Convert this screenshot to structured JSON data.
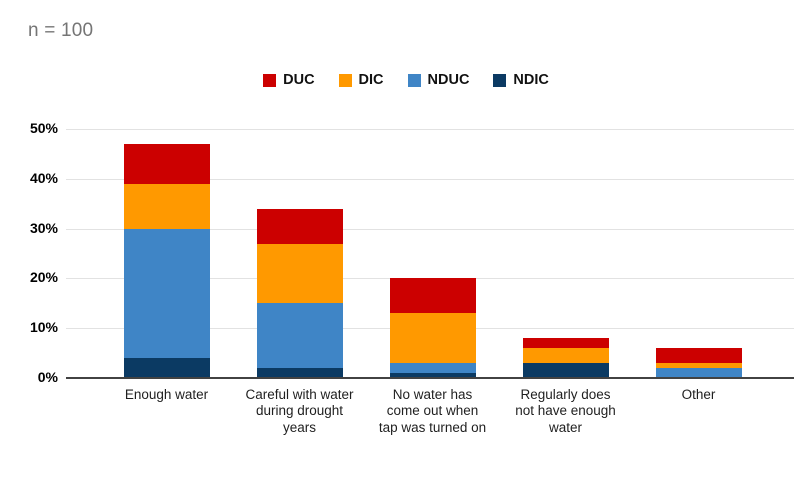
{
  "title": "n = 100",
  "legend": {
    "position": "top-center",
    "items": [
      {
        "label": "DUC",
        "color": "#cc0000"
      },
      {
        "label": "DIC",
        "color": "#ff9900"
      },
      {
        "label": "NDUC",
        "color": "#3f85c6"
      },
      {
        "label": "NDIC",
        "color": "#0b3a63"
      }
    ]
  },
  "chart_data": {
    "type": "bar",
    "stacked": true,
    "title": "n = 100",
    "categories": [
      "Enough water",
      "Careful with water during drought years",
      "No water has come out when tap was turned on",
      "Regularly does not have enough water",
      "Other"
    ],
    "series": [
      {
        "name": "NDIC",
        "color": "#0b3a63",
        "values": [
          4,
          2,
          1,
          3,
          0
        ]
      },
      {
        "name": "NDUC",
        "color": "#3f85c6",
        "values": [
          26,
          13,
          2,
          0,
          2
        ]
      },
      {
        "name": "DIC",
        "color": "#ff9900",
        "values": [
          9,
          12,
          10,
          3,
          1
        ]
      },
      {
        "name": "DUC",
        "color": "#cc0000",
        "values": [
          8,
          7,
          7,
          2,
          3
        ]
      }
    ],
    "stack_totals": [
      47,
      34,
      20,
      8,
      6
    ],
    "xlabel": "",
    "ylabel": "",
    "yticks": [
      "0%",
      "10%",
      "20%",
      "30%",
      "40%",
      "50%"
    ],
    "ylim": [
      0,
      50
    ],
    "grid": true,
    "legend_position": "top",
    "colors": {
      "gridline": "#e2e2e2",
      "axis_line": "#424242",
      "title_text": "#757575",
      "tick_text": "#000000",
      "category_text": "#1f1f1f"
    }
  }
}
